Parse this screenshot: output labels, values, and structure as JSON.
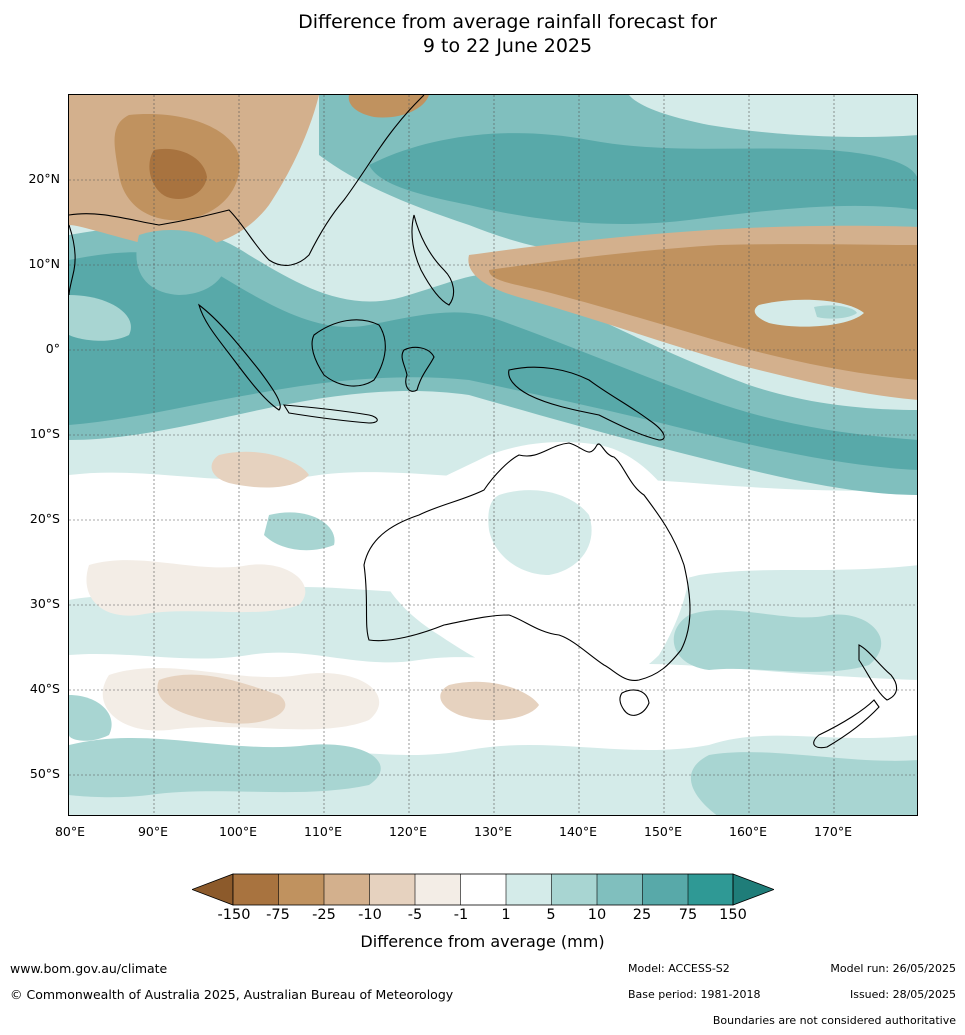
{
  "title": {
    "line1": "Difference from average rainfall forecast for",
    "line2": "9 to 22 June 2025"
  },
  "map": {
    "lat_ticks": [
      "20°N",
      "10°N",
      "0°",
      "10°S",
      "20°S",
      "30°S",
      "40°S",
      "50°S"
    ],
    "lon_ticks": [
      "80°E",
      "90°E",
      "100°E",
      "110°E",
      "120°E",
      "130°E",
      "140°E",
      "150°E",
      "160°E",
      "170°E"
    ],
    "lat_values": [
      20,
      10,
      0,
      -10,
      -20,
      -30,
      -40,
      -50
    ],
    "lon_values": [
      80,
      90,
      100,
      110,
      120,
      130,
      140,
      150,
      160,
      170
    ],
    "extent": {
      "lon_min": 80,
      "lon_max": 180,
      "lat_min": -55,
      "lat_max": 30
    },
    "gridlines": true
  },
  "colorbar": {
    "label": "Difference from average (mm)",
    "ticks": [
      "-150",
      "-75",
      "-25",
      "-10",
      "-5",
      "-1",
      "1",
      "5",
      "10",
      "25",
      "75",
      "150"
    ],
    "colors": [
      "#8c5a2b",
      "#a8733f",
      "#c0925f",
      "#d3b08d",
      "#e6d2bf",
      "#f3ede6",
      "#ffffff",
      "#d4ebe9",
      "#a8d5d2",
      "#80bfbe",
      "#58a9a9",
      "#2f9995",
      "#1f7d79"
    ],
    "extend": "both"
  },
  "footer": {
    "website": "www.bom.gov.au/climate",
    "copyright": "© Commonwealth of Australia 2025, Australian Bureau of Meteorology",
    "model": "Model: ACCESS-S2",
    "base_period": "Base period: 1981-2018",
    "model_run": "Model run: 26/05/2025",
    "issued": "Issued: 28/05/2025",
    "disclaimer": "Boundaries are not considered authoritative"
  }
}
